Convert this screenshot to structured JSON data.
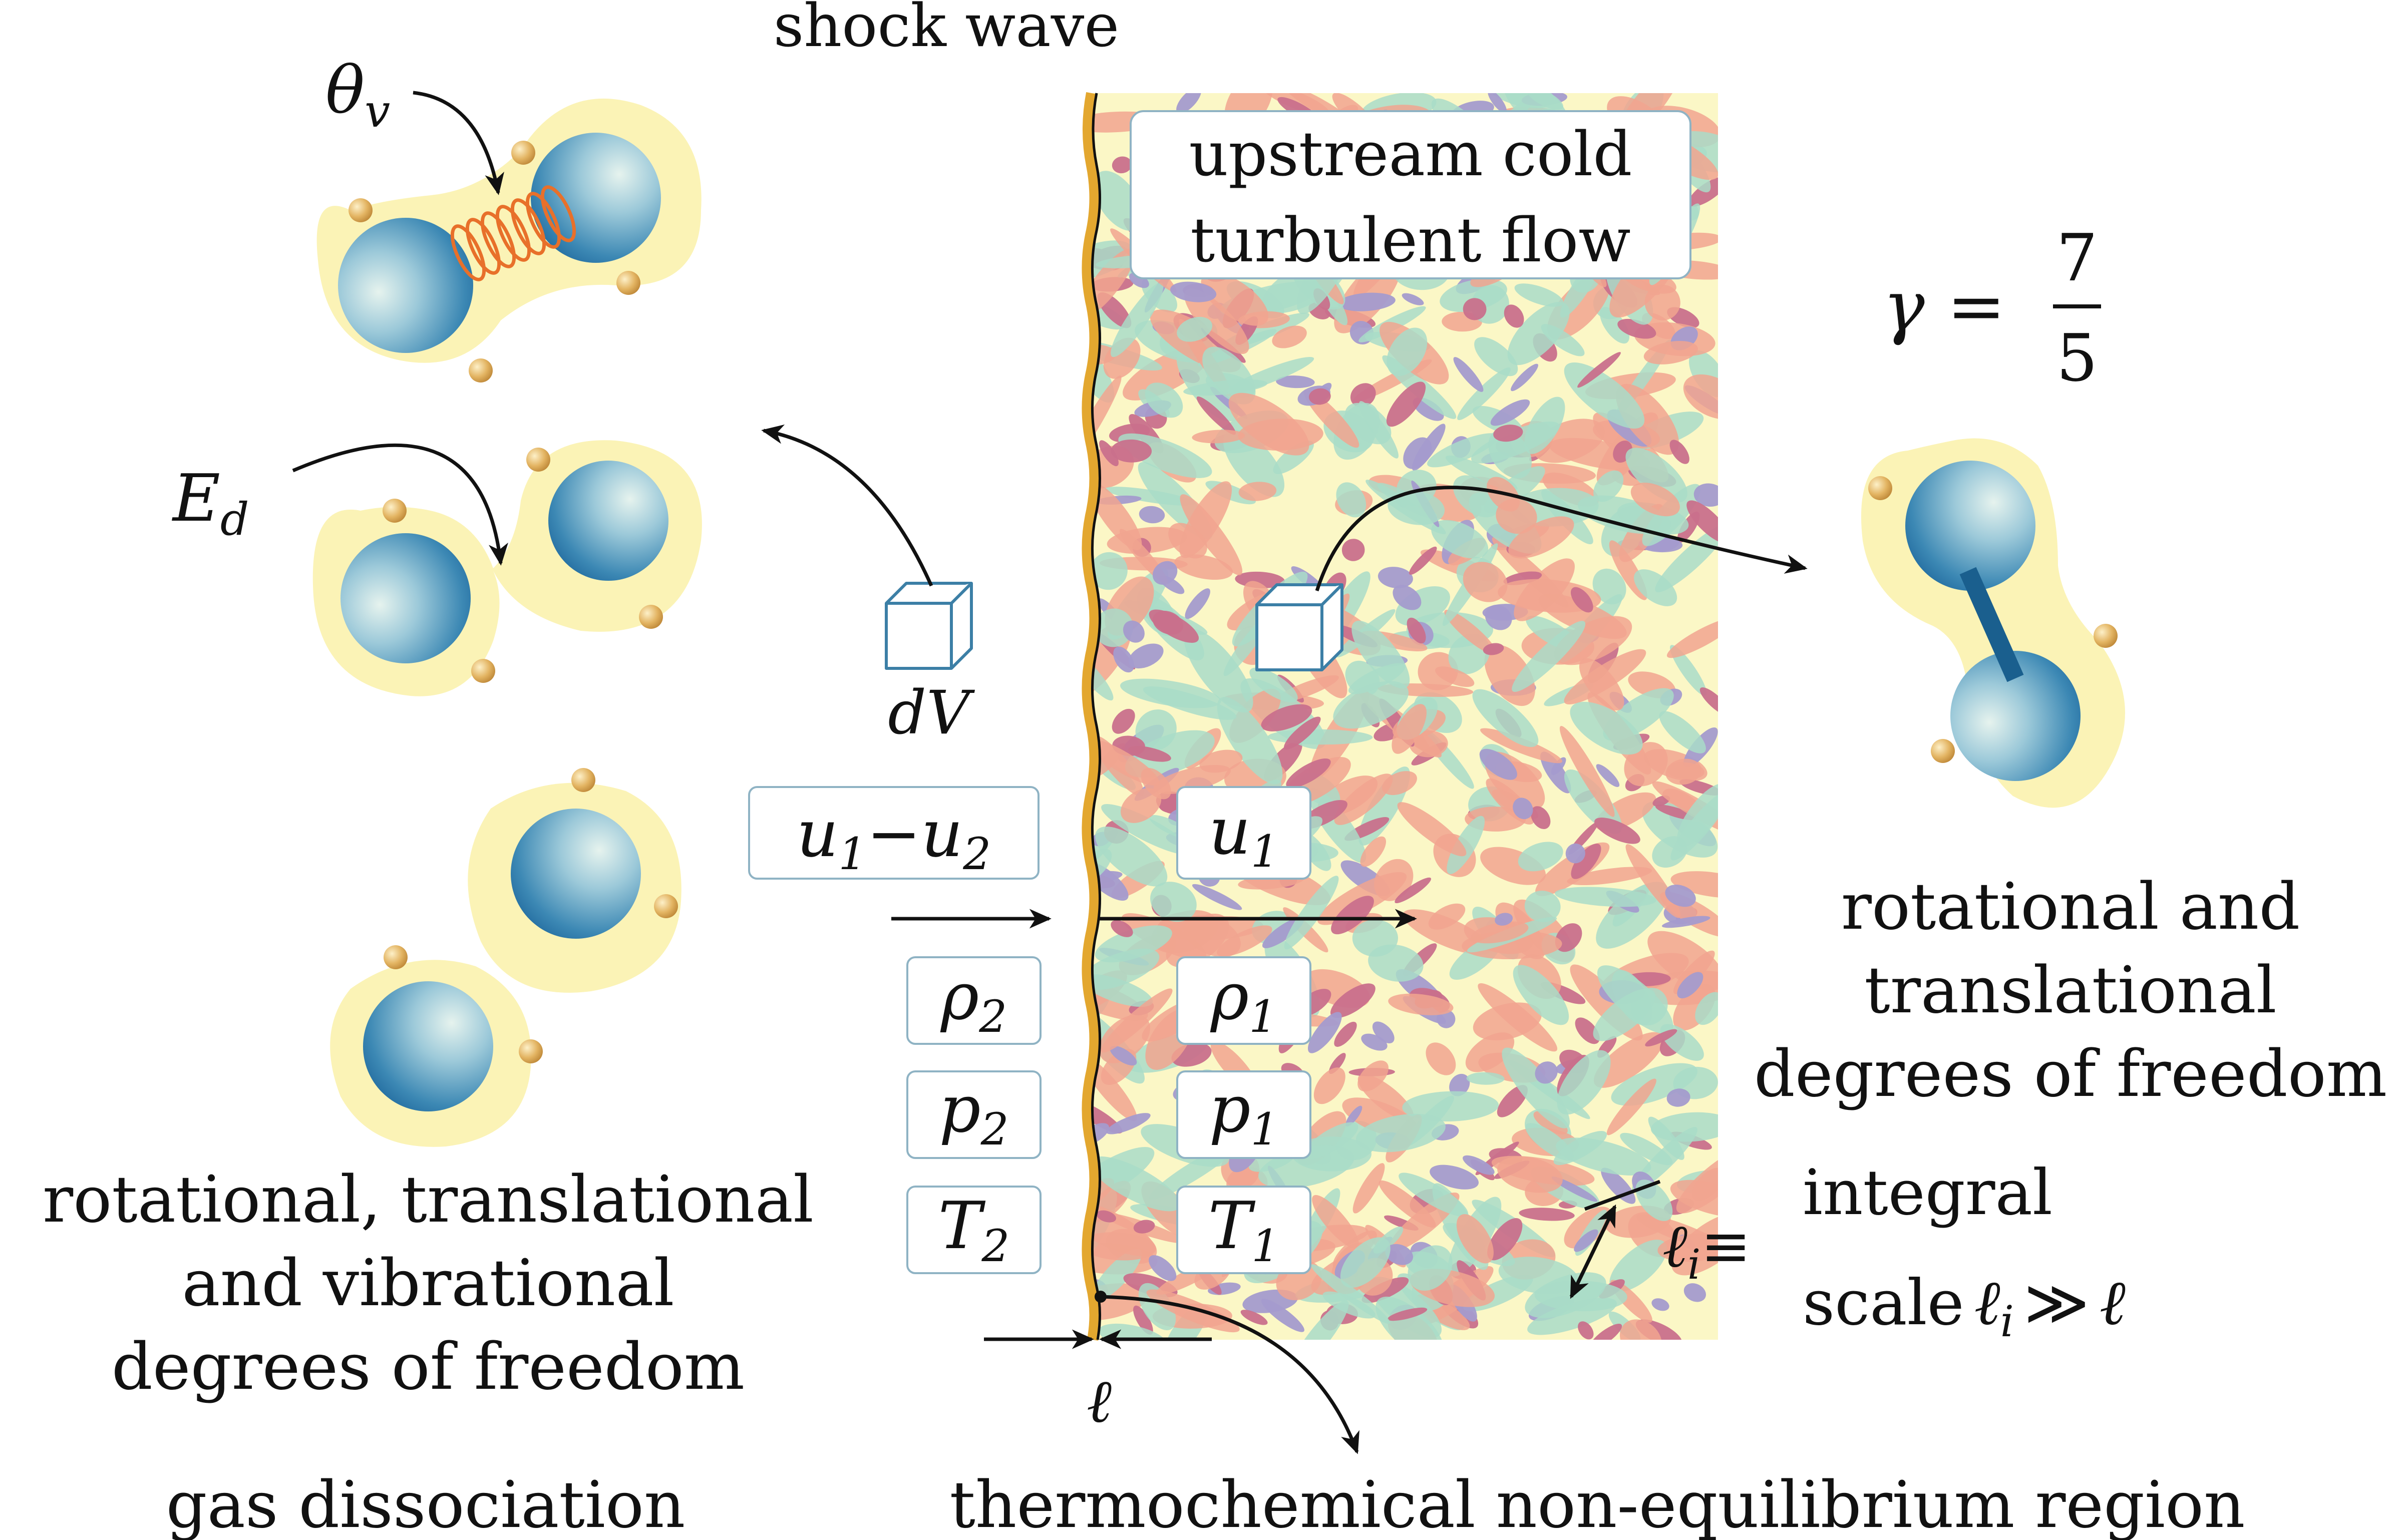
{
  "labels": {
    "shock_wave": "shock wave",
    "upstream_line1": "upstream cold",
    "upstream_line2": "turbulent flow",
    "gamma": "γ =",
    "gamma_num": "7",
    "gamma_den": "5",
    "theta_v": "θ",
    "theta_v_sub": "v",
    "e_d": "E",
    "e_d_sub": "d",
    "dv": "dV",
    "u_diff_a": "u",
    "u_diff_a_sub": "1",
    "u_diff_minus": "−",
    "u_diff_b": "u",
    "u_diff_b_sub": "2",
    "u1": "u",
    "u1_sub": "1",
    "rho2": "ρ",
    "rho2_sub": "2",
    "rho1": "ρ",
    "rho1_sub": "1",
    "p2": "p",
    "p2_sub": "2",
    "p1": "p",
    "p1_sub": "1",
    "t2": "T",
    "t2_sub": "2",
    "t1": "T",
    "t1_sub": "1",
    "ell": "ℓ",
    "ell_i": "ℓ",
    "ell_i_sub": "i",
    "ell_i_equiv": "≡",
    "integral": "integral",
    "scale": "scale",
    "scale_ell": "ℓ",
    "scale_ell_sub": "i",
    "scale_gg": "≫",
    "scale_ell2": "ℓ",
    "right_dof_line1": "rotational and",
    "right_dof_line2": "translational",
    "right_dof_line3": "degrees of freedom",
    "left_dof_line1": "rotational, translational",
    "left_dof_line2": "and vibrational",
    "left_dof_line3": "degrees of freedom",
    "gas_dissociation": "gas dissociation",
    "noneq_region": "thermochemical non-equilibrium region"
  },
  "colors": {
    "turb_cream": "#fbf7c6",
    "turb_teal": "#a9dcc8",
    "turb_salmon": "#f1a48f",
    "turb_magenta": "#c9708c",
    "turb_purple": "#a49bcd",
    "shock_orange": "#e3a72f",
    "halo_yellow": "#fbf3b6",
    "sphere_blue": "#1e6fa3",
    "spring_orange": "#e8702a",
    "box_border": "#8fb3c4"
  },
  "icons": {
    "cube": "volume-element-cube-icon",
    "spring": "spring-bond-icon"
  }
}
